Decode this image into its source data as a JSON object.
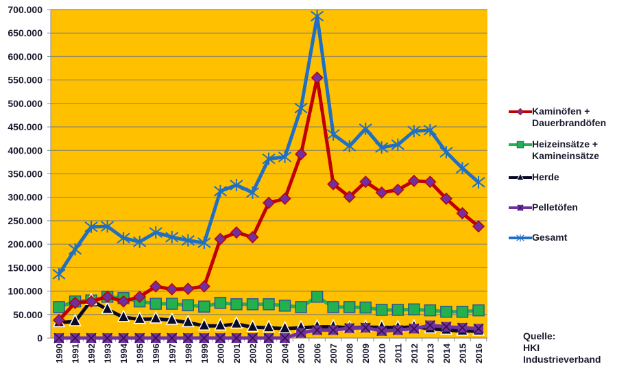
{
  "chart_data": {
    "type": "line",
    "title": "",
    "xlabel": "",
    "ylabel": "",
    "ylim": [
      0,
      700000
    ],
    "yticks": [
      0,
      50000,
      100000,
      150000,
      200000,
      250000,
      300000,
      350000,
      400000,
      450000,
      500000,
      550000,
      600000,
      650000,
      700000
    ],
    "ytick_labels": [
      "0",
      "50.000",
      "100.000",
      "150.000",
      "200.000",
      "250.000",
      "300.000",
      "350.000",
      "400.000",
      "450.000",
      "500.000",
      "550.000",
      "600.000",
      "650.000",
      "700.000"
    ],
    "categories": [
      "1990",
      "1991",
      "1992",
      "1993",
      "1994",
      "1995",
      "1996",
      "1997",
      "1998",
      "1999",
      "2000",
      "2001",
      "2002",
      "2003",
      "2004",
      "2005",
      "2006",
      "2007",
      "2008",
      "2009",
      "2010",
      "2011",
      "2012",
      "2013",
      "2014",
      "2015",
      "2016"
    ],
    "grid": true,
    "background": "#FFC000",
    "legend_position": "right",
    "series": [
      {
        "name": "Kaminöfen +\nDauerbrandöfen",
        "color": "#C00000",
        "marker": "diamond",
        "marker_color": "#7030A0",
        "values": [
          38000,
          75000,
          78000,
          88000,
          78000,
          88000,
          110000,
          104000,
          105000,
          110000,
          211000,
          225000,
          215000,
          288000,
          297000,
          392000,
          555000,
          328000,
          301000,
          333000,
          310000,
          316000,
          335000,
          333000,
          297000,
          266000,
          238000
        ]
      },
      {
        "name": "Heizeinsätze +\nKamineinsätze",
        "color": "#22B14C",
        "marker": "square",
        "marker_color": "#22B14C",
        "values": [
          66000,
          78000,
          80000,
          88000,
          85000,
          78000,
          73000,
          73000,
          70000,
          67000,
          75000,
          72000,
          72000,
          72000,
          69000,
          66000,
          88000,
          66000,
          66000,
          65000,
          60000,
          60000,
          61000,
          59000,
          56000,
          56000,
          59000
        ]
      },
      {
        "name": "Herde",
        "color": "#0B0B28",
        "marker": "triangle",
        "marker_color": "#0B0B28",
        "values": [
          33000,
          35000,
          80000,
          61000,
          44000,
          40000,
          41000,
          38000,
          33000,
          26000,
          26000,
          30000,
          23000,
          22000,
          20000,
          22000,
          24000,
          24000,
          22000,
          23000,
          23000,
          22000,
          24000,
          20000,
          17000,
          15000,
          15000
        ]
      },
      {
        "name": "Pelletöfen",
        "color": "#7030A0",
        "marker": "x",
        "marker_color": "#7030A0",
        "values": [
          0,
          0,
          0,
          0,
          0,
          0,
          0,
          0,
          0,
          0,
          0,
          0,
          0,
          0,
          0,
          11000,
          17000,
          17000,
          21000,
          22000,
          15000,
          17000,
          20000,
          27000,
          24000,
          22000,
          20000
        ]
      },
      {
        "name": "Gesamt",
        "color": "#1F6FC5",
        "marker": "asterisk",
        "marker_color": "#1F6FC5",
        "values": [
          136000,
          189000,
          237000,
          238000,
          213000,
          205000,
          225000,
          215000,
          208000,
          203000,
          313000,
          326000,
          310000,
          382000,
          386000,
          490000,
          686000,
          434000,
          409000,
          446000,
          406000,
          412000,
          441000,
          443000,
          396000,
          362000,
          332000
        ]
      }
    ]
  },
  "source": {
    "line1": "Quelle:",
    "line2": "HKI",
    "line3": "Industrieverband"
  }
}
